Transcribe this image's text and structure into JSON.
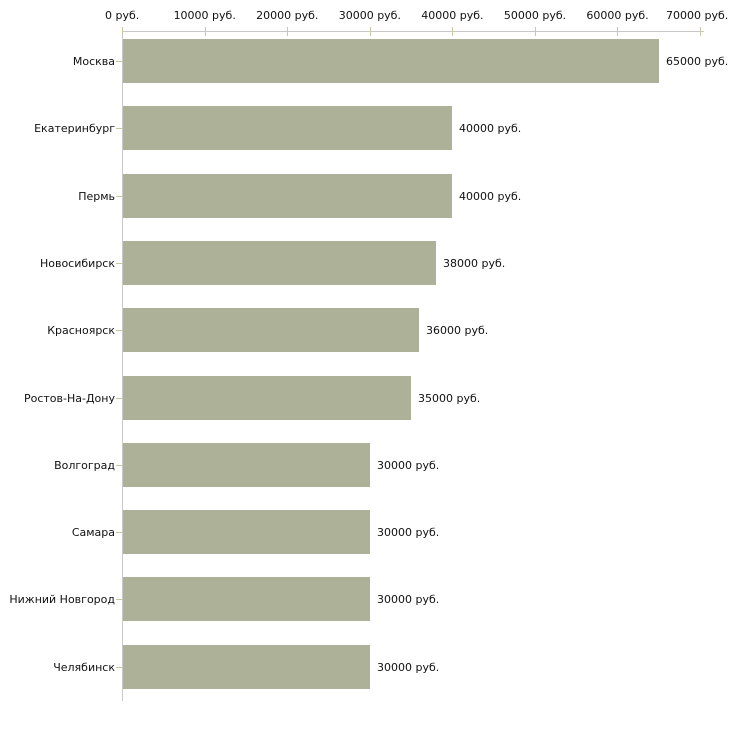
{
  "chart_data": {
    "type": "bar",
    "orientation": "horizontal",
    "title": "",
    "xlabel": "",
    "ylabel": "",
    "categories": [
      "Москва",
      "Екатеринбург",
      "Пермь",
      "Новосибирск",
      "Красноярск",
      "Ростов-На-Дону",
      "Волгоград",
      "Самара",
      "Нижний Новгород",
      "Челябинск"
    ],
    "values": [
      65000,
      40000,
      40000,
      38000,
      36000,
      35000,
      30000,
      30000,
      30000,
      30000
    ],
    "value_labels": [
      "65000 руб.",
      "40000 руб.",
      "40000 руб.",
      "38000 руб.",
      "36000 руб.",
      "35000 руб.",
      "30000 руб.",
      "30000 руб.",
      "30000 руб.",
      "30000 руб."
    ],
    "x_ticks": {
      "values": [
        0,
        10000,
        20000,
        30000,
        40000,
        50000,
        60000,
        70000
      ],
      "labels": [
        "0 руб.",
        "10000 руб.",
        "20000 руб.",
        "30000 руб.",
        "40000 руб.",
        "50000 руб.",
        "60000 руб.",
        "70000 руб."
      ]
    },
    "xlim": [
      0,
      70000
    ],
    "grid": false,
    "legend": false,
    "axis_position": "top"
  },
  "colors": {
    "bar_fill": "#acb197",
    "axis_line": "#c9c9c9",
    "tick_mark": "#c9c6a3",
    "text": "#111111",
    "background": "#ffffff"
  }
}
